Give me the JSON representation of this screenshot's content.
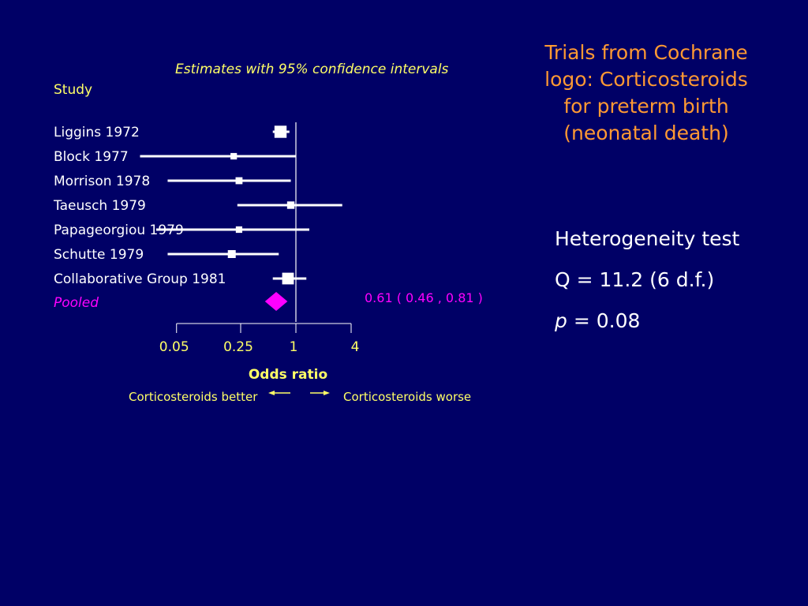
{
  "subtitle": "Estimates with 95% confidence intervals",
  "study_header": "Study",
  "slide_title": "Trials from Cochrane logo: Corticosteroids for preterm birth (neonatal death)",
  "heterogeneity": {
    "title": "Heterogeneity test",
    "q_line": "Q = 11.2 (6 d.f.)",
    "p_symbol": "p",
    "p_value": " = 0.08"
  },
  "colors": {
    "background": "#000066",
    "label": "#ffffff",
    "accent_yellow": "#ffff66",
    "title_orange": "#ff9933",
    "pooled_magenta": "#ff00ff"
  },
  "chart_data": {
    "type": "forest",
    "xscale": "log",
    "xlabel": "Odds ratio",
    "ticks": [
      0.05,
      0.25,
      1,
      4
    ],
    "tick_labels": [
      "0.05",
      "0.25",
      "1",
      "4"
    ],
    "direction_left": "Corticosteroids  better",
    "direction_right": "Corticosteroids worse",
    "studies": [
      {
        "name": "Liggins 1972",
        "or": 0.68,
        "lo": 0.56,
        "hi": 0.85,
        "weight": 0.95
      },
      {
        "name": "Block 1977",
        "or": 0.21,
        "lo": 0.02,
        "hi": 1.0,
        "weight": 0.35
      },
      {
        "name": "Morrison 1978",
        "or": 0.24,
        "lo": 0.04,
        "hi": 0.88,
        "weight": 0.4
      },
      {
        "name": "Taeusch 1979",
        "or": 0.88,
        "lo": 0.23,
        "hi": 3.2,
        "weight": 0.45
      },
      {
        "name": "Papageorgiou 1979",
        "or": 0.24,
        "lo": 0.03,
        "hi": 1.4,
        "weight": 0.35
      },
      {
        "name": "Schutte 1979",
        "or": 0.2,
        "lo": 0.04,
        "hi": 0.65,
        "weight": 0.5
      },
      {
        "name": "Collaborative Group 1981",
        "or": 0.82,
        "lo": 0.56,
        "hi": 1.3,
        "weight": 0.9
      }
    ],
    "pooled": {
      "name": "Pooled",
      "or": 0.61,
      "lo": 0.46,
      "hi": 0.81,
      "label": "0.61   ( 0.46 , 0.81 )"
    }
  }
}
